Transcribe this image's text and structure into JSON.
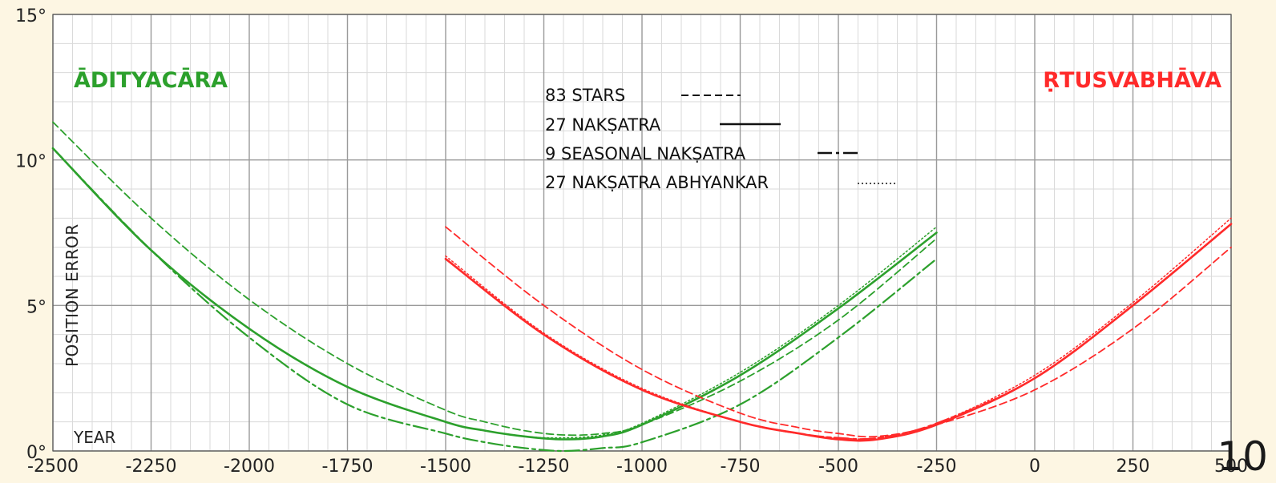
{
  "page_number": "10",
  "chart_data": {
    "type": "line",
    "title": "",
    "xlabel": "YEAR",
    "ylabel": "POSITION ERROR",
    "xlim": [
      -2500,
      500
    ],
    "ylim": [
      0,
      15
    ],
    "x_ticks": [
      "-2500",
      "-2250",
      "-2000",
      "-1750",
      "-1500",
      "-1250",
      "-1000",
      "-750",
      "-500",
      "-250",
      "0",
      "250",
      "500"
    ],
    "y_ticks": [
      "0°",
      "5°",
      "10°",
      "15°"
    ],
    "grid": true,
    "legend_position": "top-center",
    "legend": [
      {
        "label": "83 STARS",
        "style": "dashed"
      },
      {
        "label": "27 NAKṢATRA",
        "style": "solid"
      },
      {
        "label": "9 SEASONAL NAKṢATRA",
        "style": "dashdot"
      },
      {
        "label": "27 NAKṢATRA ABHYANKAR",
        "style": "dotted"
      }
    ],
    "annotations": [
      {
        "text": "ĀDITYACĀRA",
        "color": "#2ca02c"
      },
      {
        "text": "ṚTUSVABHĀVA",
        "color": "#ff2a2a"
      }
    ],
    "groups": [
      {
        "name": "ĀDITYACĀRA",
        "color": "#2ca02c",
        "x": [
          -2500,
          -2250,
          -2000,
          -1750,
          -1500,
          -1400,
          -1300,
          -1200,
          -1100,
          -1000,
          -750,
          -500,
          -250
        ],
        "series": [
          {
            "style": "dashed",
            "values": [
              11.3,
              8.0,
              5.2,
              3.0,
              1.4,
              1.0,
              0.7,
              0.55,
              0.6,
              0.9,
              2.4,
              4.5,
              7.3
            ]
          },
          {
            "style": "solid",
            "values": [
              10.4,
              6.9,
              4.2,
              2.2,
              1.0,
              0.7,
              0.5,
              0.4,
              0.5,
              0.9,
              2.6,
              4.9,
              7.5
            ]
          },
          {
            "style": "dashdot",
            "values": [
              10.4,
              6.9,
              3.9,
              1.6,
              0.6,
              0.3,
              0.1,
              0.0,
              0.1,
              0.3,
              1.6,
              3.9,
              6.6
            ]
          },
          {
            "style": "dotted",
            "values": [
              10.4,
              6.9,
              4.2,
              2.2,
              1.0,
              0.7,
              0.5,
              0.45,
              0.55,
              0.95,
              2.7,
              5.0,
              7.7
            ]
          }
        ]
      },
      {
        "name": "ṚTUSVABHĀVA",
        "color": "#ff2a2a",
        "x": [
          -1500,
          -1250,
          -1000,
          -750,
          -600,
          -500,
          -400,
          -250,
          0,
          250,
          500
        ],
        "series": [
          {
            "style": "dashed",
            "values": [
              7.7,
              5.0,
              2.8,
              1.3,
              0.8,
              0.6,
              0.5,
              0.9,
              2.1,
              4.2,
              7.0
            ]
          },
          {
            "style": "solid",
            "values": [
              6.6,
              4.0,
              2.1,
              1.0,
              0.6,
              0.4,
              0.4,
              0.9,
              2.5,
              5.0,
              7.8
            ]
          },
          {
            "style": "dashdot",
            "values": [
              6.6,
              4.0,
              2.1,
              1.0,
              0.6,
              0.45,
              0.45,
              0.95,
              2.5,
              5.0,
              7.8
            ]
          },
          {
            "style": "dotted",
            "values": [
              6.7,
              4.05,
              2.15,
              1.0,
              0.6,
              0.45,
              0.45,
              0.95,
              2.6,
              5.1,
              8.0
            ]
          }
        ]
      }
    ]
  }
}
